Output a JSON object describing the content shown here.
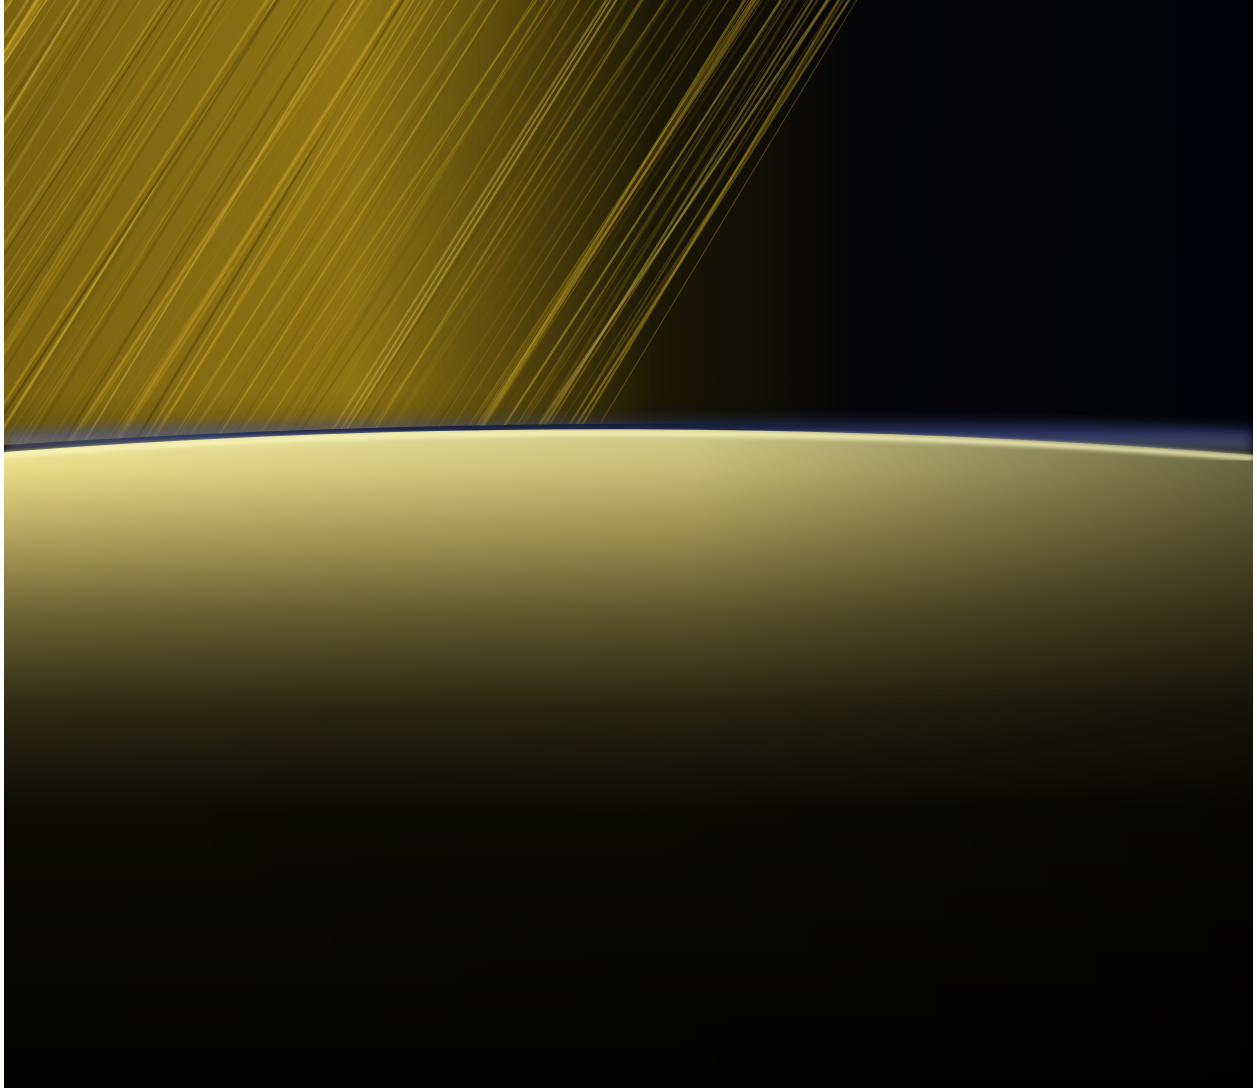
{
  "image": {
    "subject": "planet-limb-with-rings",
    "colors": {
      "space": "#020309",
      "ring_gold": "#8a6f12",
      "ring_dark": "#2a2205",
      "limb_highlight": "#f4ec9a",
      "limb_haze_blue": "#3a4a9a",
      "atmosphere_mid": "#a99a55",
      "night_side": "#030301"
    }
  }
}
